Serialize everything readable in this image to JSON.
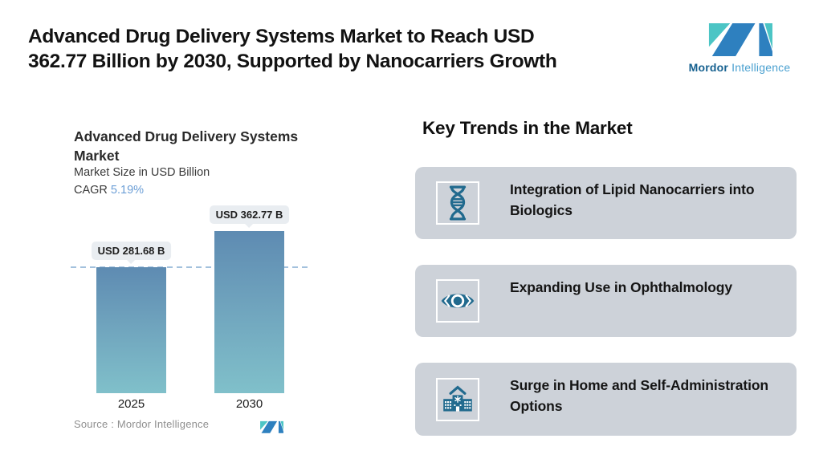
{
  "header": {
    "title_line1": "Advanced Drug Delivery Systems Market to Reach USD",
    "title_line2": "362.77 Billion by 2030, Supported by Nanocarriers Growth"
  },
  "brand": {
    "name_bold": "Mordor",
    "name_light": "Intelligence"
  },
  "chart": {
    "title_line1": "Advanced Drug Delivery Systems",
    "title_line2": "Market",
    "subtitle": "Market Size in USD Billion",
    "cagr_label": "CAGR ",
    "cagr_value": "5.19%",
    "source_label": "Source :  ",
    "source_value": "Mordor Intelligence"
  },
  "chart_data": {
    "type": "bar",
    "title": "Advanced Drug Delivery Systems Market",
    "subtitle": "Market Size in USD Billion",
    "cagr_percent": 5.19,
    "categories": [
      "2025",
      "2030"
    ],
    "values": [
      281.68,
      362.77
    ],
    "bar_labels": [
      "USD 281.68 B",
      "USD 362.77 B"
    ],
    "unit": "USD Billion",
    "reference_line_value": 281.68,
    "reference_line_style": "dashed",
    "legend": "none",
    "grid": "off",
    "bar_gradient": [
      "#5e8bb2",
      "#80c0ca"
    ]
  },
  "trends": {
    "heading": "Key Trends in the Market",
    "cards": [
      {
        "icon": "dna-icon",
        "text": "Integration of Lipid Nanocarriers into Biologics"
      },
      {
        "icon": "eye-icon",
        "text": "Expanding Use in Ophthalmology"
      },
      {
        "icon": "hospital-icon",
        "text": "Surge in Home and Self-Administration Options"
      }
    ]
  },
  "colors": {
    "accent_teal_icon": "#216a8e",
    "card_background": "#cdd2d9",
    "badge_background": "#e9edf1",
    "dashed_line": "#a3c1dd",
    "cagr_value_blue": "#6b9ed6",
    "logo_teal": "#4cc5c5",
    "logo_blue": "#2e80bf",
    "bar_top": "#5e8bb2",
    "bar_bottom": "#80c0ca"
  }
}
